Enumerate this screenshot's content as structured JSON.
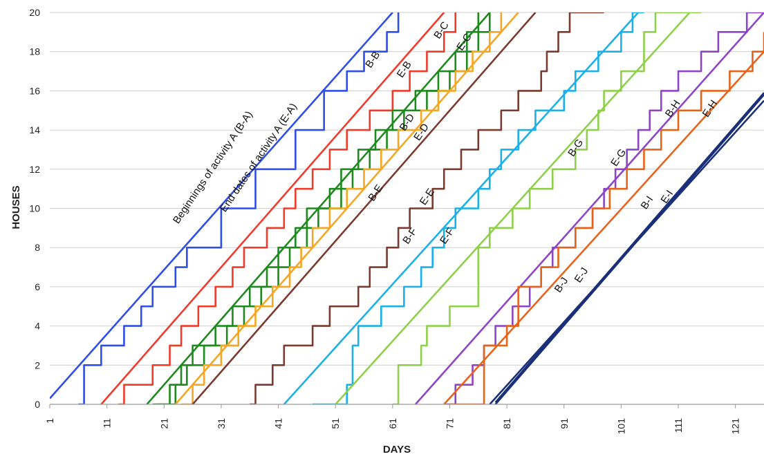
{
  "chart_data": {
    "type": "line",
    "title": "",
    "xlabel": "DAYS",
    "ylabel": "HOUSES",
    "xlim": [
      1,
      126
    ],
    "ylim": [
      0,
      20
    ],
    "x_ticks": [
      1,
      11,
      21,
      31,
      41,
      51,
      61,
      71,
      81,
      91,
      101,
      111,
      121
    ],
    "y_ticks": [
      0,
      2,
      4,
      6,
      8,
      10,
      12,
      14,
      16,
      18,
      20
    ],
    "grid": "horizontal",
    "legend": "none",
    "series": [
      {
        "name": "Beginnings of activity A (B-A)",
        "color": "#2f4de8",
        "style": "straight",
        "points": [
          [
            1,
            0.3
          ],
          [
            61,
            20
          ]
        ]
      },
      {
        "name": "",
        "color": "#2f4de8",
        "style": "steps",
        "points": [
          [
            6,
            0
          ],
          [
            7,
            2
          ],
          [
            10,
            3
          ],
          [
            14,
            4
          ],
          [
            17,
            5
          ],
          [
            19,
            6
          ],
          [
            23,
            7
          ],
          [
            25,
            8
          ],
          [
            31,
            10
          ],
          [
            37,
            12
          ],
          [
            44,
            14
          ],
          [
            49,
            16
          ],
          [
            53,
            17
          ],
          [
            56,
            18
          ],
          [
            60,
            19
          ],
          [
            62,
            20
          ]
        ]
      },
      {
        "name": "",
        "color": "#f03a2a",
        "style": "straight",
        "points": [
          [
            10,
            0
          ],
          [
            70,
            20
          ]
        ]
      },
      {
        "name": "E-B",
        "color": "#f03a2a",
        "style": "steps",
        "points": [
          [
            13,
            0
          ],
          [
            14,
            1
          ],
          [
            19,
            2
          ],
          [
            22,
            3
          ],
          [
            24,
            4
          ],
          [
            27,
            5
          ],
          [
            30,
            6
          ],
          [
            33,
            7
          ],
          [
            35,
            8
          ],
          [
            39,
            9
          ],
          [
            42,
            10
          ],
          [
            44,
            11
          ],
          [
            47,
            12
          ],
          [
            50,
            13
          ],
          [
            53,
            14
          ],
          [
            57,
            15
          ],
          [
            61,
            16
          ],
          [
            64,
            17
          ],
          [
            67,
            18
          ],
          [
            70,
            19
          ],
          [
            72,
            20
          ]
        ]
      },
      {
        "name": "B-C",
        "color": "#1e8a1e",
        "style": "straight",
        "points": [
          [
            18,
            0
          ],
          [
            78,
            20
          ]
        ]
      },
      {
        "name": "",
        "color": "#1e8a1e",
        "style": "steps",
        "points": [
          [
            19,
            0
          ],
          [
            22,
            1
          ],
          [
            24,
            2
          ],
          [
            26,
            3
          ],
          [
            30,
            4
          ],
          [
            33,
            5
          ],
          [
            36,
            6
          ],
          [
            39,
            7
          ],
          [
            41,
            8
          ],
          [
            44,
            9
          ],
          [
            46,
            10
          ],
          [
            50,
            11
          ],
          [
            52,
            12
          ],
          [
            55,
            13
          ],
          [
            58,
            14
          ],
          [
            61,
            15
          ],
          [
            65,
            16
          ],
          [
            69,
            17
          ],
          [
            72,
            18
          ],
          [
            74,
            19
          ],
          [
            76,
            20
          ]
        ]
      },
      {
        "name": "",
        "color": "#1e8a1e",
        "style": "steps",
        "points": [
          [
            20,
            0
          ],
          [
            23,
            1
          ],
          [
            25,
            2
          ],
          [
            28,
            3
          ],
          [
            32,
            4
          ],
          [
            35,
            5
          ],
          [
            38,
            6
          ],
          [
            41,
            7
          ],
          [
            43,
            8
          ],
          [
            46,
            9
          ],
          [
            48,
            10
          ],
          [
            52,
            11
          ],
          [
            54,
            12
          ],
          [
            57,
            13
          ],
          [
            60,
            14
          ],
          [
            63,
            15
          ],
          [
            67,
            16
          ],
          [
            71,
            17
          ],
          [
            74,
            18
          ],
          [
            76,
            19
          ],
          [
            78,
            20
          ]
        ]
      },
      {
        "name": "E-C",
        "color": "#f5a623",
        "style": "straight",
        "points": [
          [
            23,
            0
          ],
          [
            83,
            20
          ]
        ]
      },
      {
        "name": "",
        "color": "#f5a623",
        "style": "steps",
        "points": [
          [
            24,
            0
          ],
          [
            26,
            1
          ],
          [
            28,
            2
          ],
          [
            31,
            3
          ],
          [
            34,
            4
          ],
          [
            37,
            5
          ],
          [
            40,
            6
          ],
          [
            43,
            7
          ],
          [
            45,
            8
          ],
          [
            47,
            9
          ],
          [
            50,
            10
          ],
          [
            53,
            11
          ],
          [
            56,
            12
          ],
          [
            59,
            13
          ],
          [
            62,
            14
          ],
          [
            66,
            15
          ],
          [
            69,
            16
          ],
          [
            72,
            17
          ],
          [
            75,
            18
          ],
          [
            78,
            19
          ],
          [
            80,
            20
          ]
        ]
      },
      {
        "name": "E-D",
        "color": "#7a3a2e",
        "style": "straight",
        "points": [
          [
            26,
            0
          ],
          [
            86,
            20
          ]
        ]
      },
      {
        "name": "B-E",
        "color": "#7a3a2e",
        "style": "steps",
        "points": [
          [
            36,
            0
          ],
          [
            37,
            1
          ],
          [
            40,
            2
          ],
          [
            42,
            3
          ],
          [
            47,
            4
          ],
          [
            50,
            5
          ],
          [
            55,
            6
          ],
          [
            57,
            7
          ],
          [
            60,
            8
          ],
          [
            62,
            9
          ],
          [
            64,
            10
          ],
          [
            68,
            11
          ],
          [
            70,
            12
          ],
          [
            73,
            13
          ],
          [
            76,
            14
          ],
          [
            80,
            15
          ],
          [
            83,
            16
          ],
          [
            87,
            17
          ],
          [
            88,
            18
          ],
          [
            90,
            19
          ],
          [
            92,
            20
          ],
          [
            98,
            20
          ]
        ]
      },
      {
        "name": "E-E",
        "color": "#1ab0e8",
        "style": "straight",
        "points": [
          [
            42,
            0
          ],
          [
            104,
            20
          ]
        ]
      },
      {
        "name": "B-F",
        "color": "#1ab0e8",
        "style": "steps",
        "points": [
          [
            47,
            0
          ],
          [
            53,
            1
          ],
          [
            54,
            3
          ],
          [
            55,
            4
          ],
          [
            59,
            5
          ],
          [
            63,
            6
          ],
          [
            66,
            7
          ],
          [
            68,
            8
          ],
          [
            70,
            9
          ],
          [
            72,
            10
          ],
          [
            76,
            11
          ],
          [
            78,
            12
          ],
          [
            80,
            13
          ],
          [
            83,
            14
          ],
          [
            86,
            15
          ],
          [
            91,
            16
          ],
          [
            93,
            17
          ],
          [
            97,
            18
          ],
          [
            101,
            19
          ],
          [
            103,
            20
          ],
          [
            105,
            20
          ]
        ]
      },
      {
        "name": "E-F",
        "color": "#8ed04a",
        "style": "straight",
        "points": [
          [
            51,
            0
          ],
          [
            113,
            20
          ]
        ]
      },
      {
        "name": "B-G",
        "color": "#8ed04a",
        "style": "steps",
        "points": [
          [
            61,
            0
          ],
          [
            62,
            2
          ],
          [
            66,
            3
          ],
          [
            67,
            4
          ],
          [
            71,
            5
          ],
          [
            76,
            8
          ],
          [
            78,
            9
          ],
          [
            82,
            10
          ],
          [
            85,
            11
          ],
          [
            89,
            12
          ],
          [
            93,
            13
          ],
          [
            95,
            14
          ],
          [
            97,
            15
          ],
          [
            98,
            16
          ],
          [
            101,
            17
          ],
          [
            105,
            19
          ],
          [
            107,
            20
          ],
          [
            115,
            20
          ]
        ]
      },
      {
        "name": "E-G",
        "color": "#8e44c7",
        "style": "straight",
        "points": [
          [
            65,
            0
          ],
          [
            126,
            20
          ]
        ]
      },
      {
        "name": "B-H",
        "color": "#8e44c7",
        "style": "steps",
        "points": [
          [
            70,
            0
          ],
          [
            72,
            1
          ],
          [
            75,
            2
          ],
          [
            77,
            3
          ],
          [
            79,
            4
          ],
          [
            82,
            5
          ],
          [
            85,
            6
          ],
          [
            87,
            7
          ],
          [
            89,
            8
          ],
          [
            93,
            9
          ],
          [
            96,
            10
          ],
          [
            98,
            11
          ],
          [
            100,
            12
          ],
          [
            102,
            13
          ],
          [
            104,
            14
          ],
          [
            106,
            15
          ],
          [
            108,
            16
          ],
          [
            111,
            17
          ],
          [
            115,
            18
          ],
          [
            118,
            19
          ],
          [
            123,
            20
          ],
          [
            126,
            21
          ]
        ]
      },
      {
        "name": "E-H",
        "color": "#e8631a",
        "style": "straight",
        "points": [
          [
            70,
            0
          ],
          [
            126,
            18
          ]
        ]
      },
      {
        "name": "B-I",
        "color": "#e8631a",
        "style": "steps",
        "points": [
          [
            71,
            0
          ],
          [
            77,
            3
          ],
          [
            81,
            4
          ],
          [
            83,
            6
          ],
          [
            87,
            7
          ],
          [
            90,
            8
          ],
          [
            93,
            9
          ],
          [
            96,
            10
          ],
          [
            99,
            11
          ],
          [
            102,
            12
          ],
          [
            105,
            13
          ],
          [
            108,
            14
          ],
          [
            111,
            15
          ],
          [
            115,
            16
          ],
          [
            120,
            17
          ],
          [
            124,
            18
          ],
          [
            126,
            19
          ]
        ]
      },
      {
        "name": "E-I",
        "color": "#1a2f7a",
        "style": "straight",
        "points": [
          [
            78,
            0
          ],
          [
            126,
            15.5
          ]
        ]
      },
      {
        "name": "B-J",
        "color": "#1a2f7a",
        "style": "straight",
        "points": [
          [
            79,
            0
          ],
          [
            126,
            15.8
          ]
        ]
      },
      {
        "name": "E-J",
        "color": "#1a2f7a",
        "style": "straight",
        "points": [
          [
            79,
            0.1
          ],
          [
            126,
            15.9
          ]
        ]
      }
    ],
    "annotations": [
      {
        "text": "Beginnings of activity A (B-A)",
        "x": 30,
        "y": 12,
        "angle": -56
      },
      {
        "text": "End dates of activity A (E-A)",
        "x": 38,
        "y": 12.5,
        "angle": -56
      },
      {
        "text": "B-B",
        "x": 58,
        "y": 17.5,
        "angle": -56
      },
      {
        "text": "E-B",
        "x": 63.5,
        "y": 17,
        "angle": -56
      },
      {
        "text": "B-C",
        "x": 70,
        "y": 19,
        "angle": -56
      },
      {
        "text": "E-C",
        "x": 74,
        "y": 18.4,
        "angle": -56
      },
      {
        "text": "B-D",
        "x": 64,
        "y": 14.3,
        "angle": -56
      },
      {
        "text": "E-D",
        "x": 66.5,
        "y": 13.8,
        "angle": -56
      },
      {
        "text": "B-E",
        "x": 58.5,
        "y": 10.7,
        "angle": -56
      },
      {
        "text": "E-E",
        "x": 67.5,
        "y": 10.5,
        "angle": -56
      },
      {
        "text": "B-F",
        "x": 64.5,
        "y": 8.5,
        "angle": -56
      },
      {
        "text": "E-F",
        "x": 71,
        "y": 8.5,
        "angle": -56
      },
      {
        "text": "B-G",
        "x": 93.5,
        "y": 13,
        "angle": -56
      },
      {
        "text": "E-G",
        "x": 101,
        "y": 12.5,
        "angle": -56
      },
      {
        "text": "B-H",
        "x": 110.5,
        "y": 15,
        "angle": -56
      },
      {
        "text": "E-H",
        "x": 117,
        "y": 15,
        "angle": -56
      },
      {
        "text": "B-I",
        "x": 106,
        "y": 10.2,
        "angle": -56
      },
      {
        "text": "E-I",
        "x": 109.5,
        "y": 10.5,
        "angle": -56
      },
      {
        "text": "B-J",
        "x": 91,
        "y": 6,
        "angle": -56
      },
      {
        "text": "E-J",
        "x": 94.5,
        "y": 6.5,
        "angle": -56
      }
    ]
  }
}
